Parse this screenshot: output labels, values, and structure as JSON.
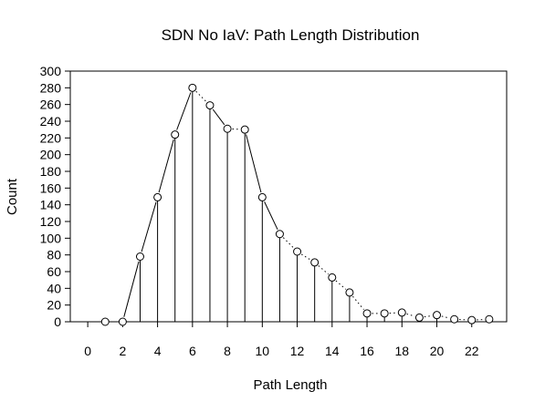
{
  "chart_data": {
    "type": "line",
    "title": "SDN No IaV:  Path Length Distribution",
    "xlabel": "Path Length",
    "ylabel": "Count",
    "xlim": [
      -1,
      24
    ],
    "ylim": [
      0,
      300
    ],
    "x_ticks": [
      0,
      2,
      4,
      6,
      8,
      10,
      12,
      14,
      16,
      18,
      20,
      22
    ],
    "y_ticks": [
      0,
      20,
      40,
      60,
      80,
      100,
      120,
      140,
      160,
      180,
      200,
      220,
      240,
      260,
      280,
      300
    ],
    "x": [
      1,
      2,
      3,
      4,
      5,
      6,
      7,
      8,
      9,
      10,
      11,
      12,
      13,
      14,
      15,
      16,
      17,
      18,
      19,
      20,
      21,
      22,
      23
    ],
    "values": [
      0,
      0,
      78,
      149,
      224,
      280,
      259,
      231,
      230,
      149,
      105,
      84,
      71,
      53,
      35,
      10,
      10,
      11,
      5,
      8,
      3,
      2,
      3
    ],
    "marker": "circle",
    "style": "points connected by line with vertical drop lines",
    "colors": {
      "line": "#000000",
      "background": "#ffffff"
    },
    "grid": false,
    "legend": "none"
  }
}
